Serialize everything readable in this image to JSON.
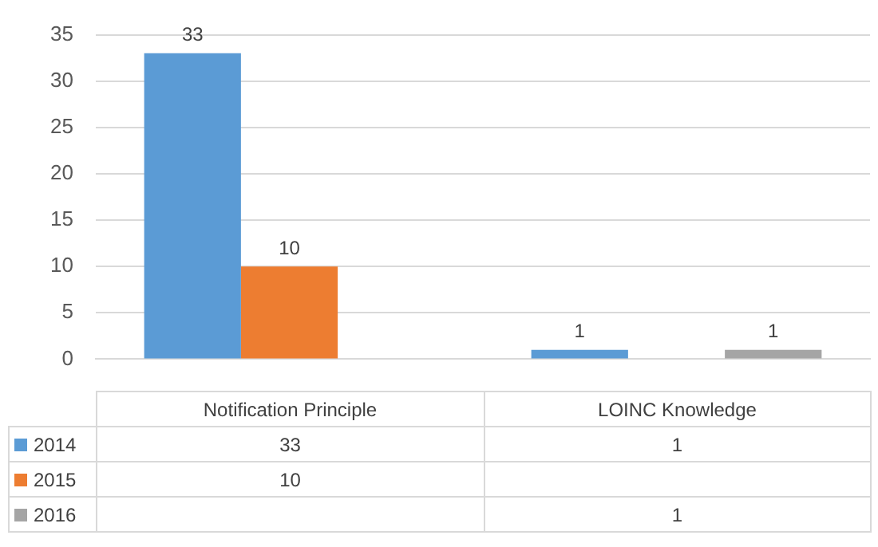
{
  "chart_data": {
    "type": "bar",
    "categories": [
      "Notification Principle",
      "LOINC Knowledge"
    ],
    "series": [
      {
        "name": "2014",
        "color": "#5b9bd5",
        "values": [
          33,
          1
        ],
        "value_labels": [
          "33",
          "1"
        ]
      },
      {
        "name": "2015",
        "color": "#ed7d31",
        "values": [
          10,
          null
        ],
        "value_labels": [
          "10",
          null
        ]
      },
      {
        "name": "2016",
        "color": "#a5a5a5",
        "values": [
          null,
          1
        ],
        "value_labels": [
          null,
          "1"
        ]
      }
    ],
    "ylim": [
      0,
      35
    ],
    "yticks": [
      0,
      5,
      10,
      15,
      20,
      25,
      30,
      35
    ],
    "grid": "y",
    "annotations": [
      "33",
      "1",
      "10",
      "1"
    ],
    "legend": "bottom left"
  }
}
